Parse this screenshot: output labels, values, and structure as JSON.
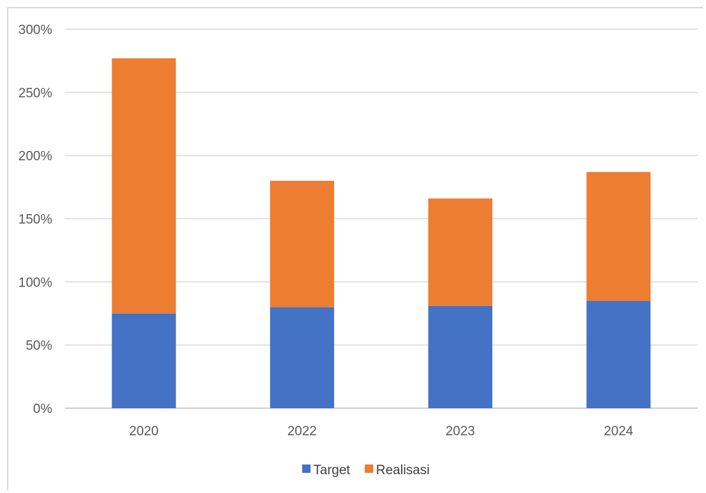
{
  "chart_data": {
    "type": "bar",
    "stacked": true,
    "categories": [
      "2020",
      "2022",
      "2023",
      "2024"
    ],
    "series": [
      {
        "name": "Target",
        "values": [
          75,
          80,
          81,
          85
        ],
        "color": "#4472C4"
      },
      {
        "name": "Realisasi",
        "values": [
          202,
          100,
          85,
          102
        ],
        "color": "#ED7D31"
      }
    ],
    "y_ticks": [
      "0%",
      "50%",
      "100%",
      "150%",
      "200%",
      "250%",
      "300%"
    ],
    "ylim": [
      0,
      300
    ],
    "grid": true,
    "legend_position": "bottom",
    "title": "",
    "xlabel": "",
    "ylabel": ""
  }
}
